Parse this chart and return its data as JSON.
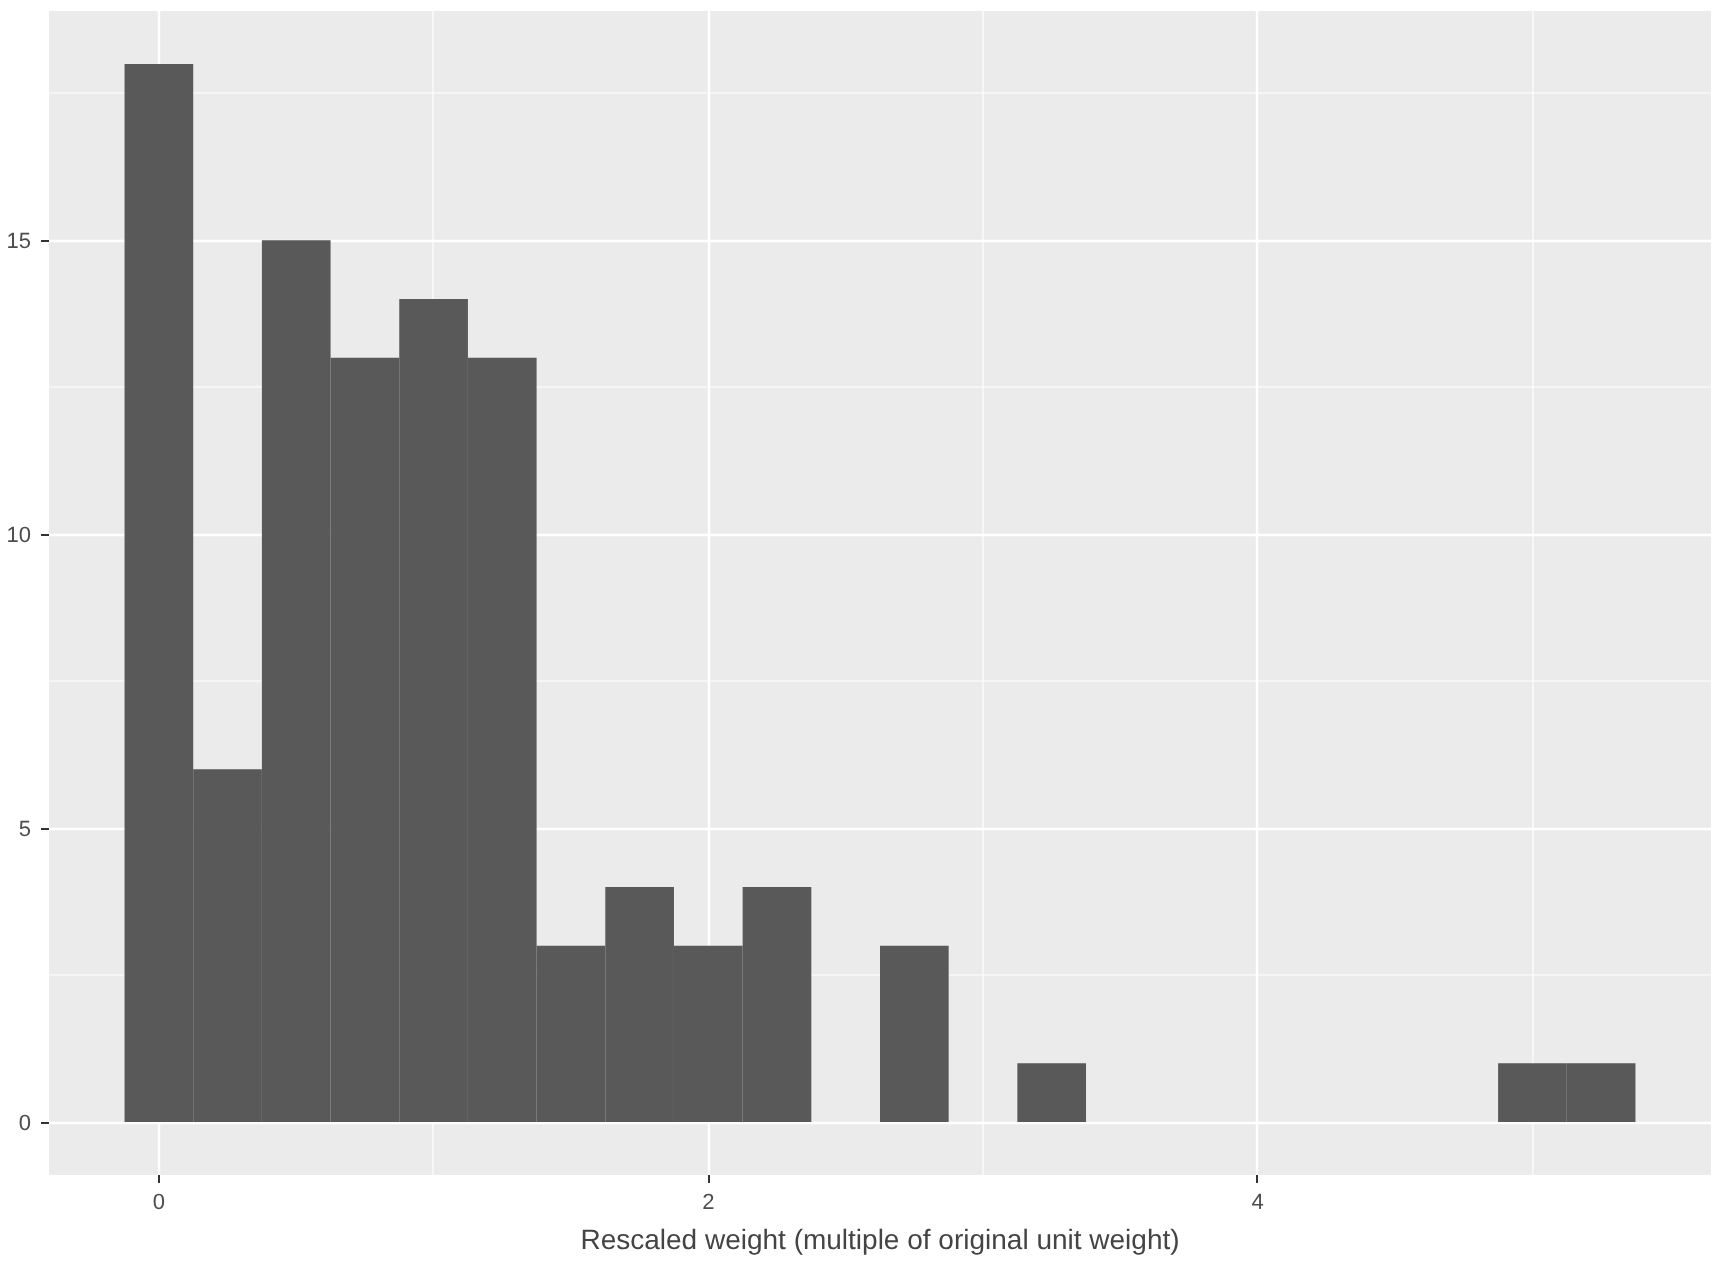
{
  "chart_data": {
    "type": "histogram",
    "xlabel": "Rescaled weight (multiple of original unit weight)",
    "bins": [
      -0.125,
      0.125,
      0.375,
      0.625,
      0.875,
      1.125,
      1.375,
      1.625,
      1.875,
      2.125,
      2.375,
      2.625,
      2.875,
      3.125,
      3.375,
      3.625,
      3.875,
      4.125,
      4.375,
      4.625,
      4.875,
      5.125,
      5.375
    ],
    "values": [
      18,
      6,
      15,
      13,
      14,
      13,
      3,
      4,
      3,
      4,
      0,
      3,
      0,
      1,
      0,
      0,
      0,
      0,
      0,
      0,
      1,
      1
    ],
    "color": "#595959",
    "xlim": [
      -0.4,
      5.65
    ],
    "ylim": [
      -0.9,
      18.9
    ],
    "xticks": [
      0,
      2,
      4
    ],
    "yticks": [
      0,
      5,
      10,
      15
    ],
    "grid": true
  }
}
